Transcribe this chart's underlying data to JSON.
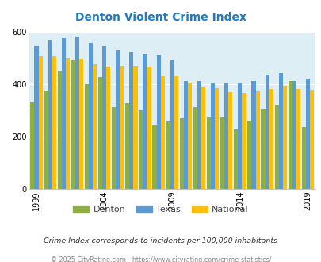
{
  "title": "Denton Violent Crime Index",
  "years": [
    1999,
    2000,
    2001,
    2002,
    2003,
    2004,
    2005,
    2006,
    2007,
    2008,
    2009,
    2010,
    2011,
    2012,
    2013,
    2014,
    2015,
    2016,
    2017,
    2018,
    2019
  ],
  "denton": [
    330,
    375,
    450,
    490,
    400,
    425,
    310,
    325,
    300,
    245,
    255,
    270,
    310,
    275,
    275,
    225,
    260,
    305,
    320,
    410,
    235
  ],
  "texas": [
    545,
    570,
    575,
    580,
    555,
    545,
    530,
    520,
    515,
    510,
    490,
    410,
    410,
    405,
    405,
    405,
    410,
    435,
    440,
    410,
    420
  ],
  "national": [
    505,
    505,
    500,
    495,
    475,
    465,
    470,
    470,
    465,
    430,
    430,
    405,
    390,
    385,
    368,
    366,
    373,
    380,
    394,
    381,
    379
  ],
  "denton_color": "#8db040",
  "texas_color": "#5b9bd5",
  "national_color": "#ffc000",
  "bg_color": "#ddeef5",
  "title_color": "#1f7bbf",
  "ylabel_max": 600,
  "yticks": [
    0,
    200,
    400,
    600
  ],
  "xtick_years": [
    1999,
    2004,
    2009,
    2014,
    2019
  ],
  "subtitle": "Crime Index corresponds to incidents per 100,000 inhabitants",
  "footer": "© 2025 CityRating.com - https://www.cityrating.com/crime-statistics/",
  "legend_labels": [
    "Denton",
    "Texas",
    "National"
  ]
}
